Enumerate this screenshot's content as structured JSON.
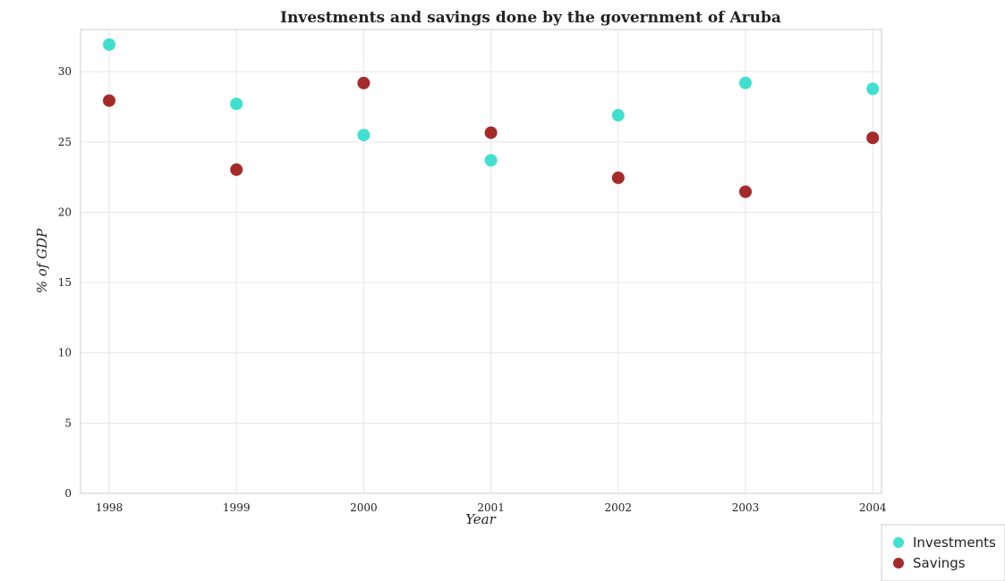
{
  "chart_data": {
    "type": "scatter",
    "title": "Investments and savings done by the government of Aruba",
    "xlabel": "Year",
    "ylabel": "% of GDP",
    "categories": [
      "1998",
      "1999",
      "2000",
      "2001",
      "2002",
      "2003",
      "2004"
    ],
    "ylim": [
      0,
      33
    ],
    "yticks": [
      0,
      5,
      10,
      15,
      20,
      25,
      30
    ],
    "grid": true,
    "legend_position": "bottom-right",
    "series": [
      {
        "name": "Investments",
        "color": "#40e0d0",
        "values": [
          31.93,
          27.71,
          25.49,
          23.69,
          26.9,
          29.2,
          28.78
        ]
      },
      {
        "name": "Savings",
        "color": "#a52a2a",
        "values": [
          27.94,
          23.03,
          29.19,
          25.66,
          22.45,
          21.46,
          25.29
        ]
      }
    ]
  }
}
